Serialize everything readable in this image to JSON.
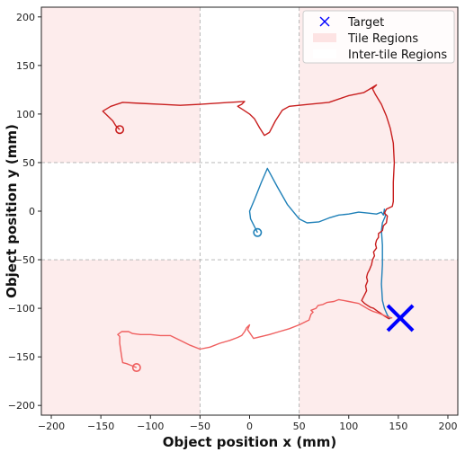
{
  "chart_data": {
    "type": "line",
    "xlabel": "Object position x (mm)",
    "ylabel": "Object position y (mm)",
    "xlim": [
      -210,
      210
    ],
    "ylim": [
      -210,
      210
    ],
    "xticks": [
      -200,
      -150,
      -100,
      -50,
      0,
      50,
      100,
      150,
      200
    ],
    "yticks": [
      -200,
      -150,
      -100,
      -50,
      0,
      50,
      100,
      150,
      200
    ],
    "grid_lines": [
      -50,
      50
    ],
    "legend_placement": "top-right",
    "legend": [
      {
        "label": "Target",
        "marker": "x",
        "color": "#0000ff"
      },
      {
        "label": "Tile Regions",
        "marker": "patch",
        "color": "#fde3e3"
      },
      {
        "label": "Inter-tile Regions",
        "marker": "patch",
        "color": "#ffffff"
      }
    ],
    "regions": {
      "tile_color": "#fdecec",
      "tile_regions": [
        {
          "x": [
            -210,
            -50
          ],
          "y": [
            50,
            210
          ]
        },
        {
          "x": [
            50,
            210
          ],
          "y": [
            50,
            210
          ]
        },
        {
          "x": [
            -210,
            -50
          ],
          "y": [
            -210,
            -50
          ]
        },
        {
          "x": [
            50,
            210
          ],
          "y": [
            -210,
            -50
          ]
        }
      ]
    },
    "target": {
      "x": 152,
      "y": -110,
      "color": "#0000ff"
    },
    "series": [
      {
        "color": "#1f80b8",
        "start": [
          8,
          -22
        ],
        "points": [
          [
            8,
            -22
          ],
          [
            1,
            -8
          ],
          [
            0,
            0
          ],
          [
            5,
            12
          ],
          [
            12,
            30
          ],
          [
            18,
            44
          ],
          [
            28,
            25
          ],
          [
            38,
            7
          ],
          [
            50,
            -8
          ],
          [
            58,
            -12
          ],
          [
            70,
            -11
          ],
          [
            80,
            -7
          ],
          [
            90,
            -4
          ],
          [
            100,
            -3
          ],
          [
            110,
            -1
          ],
          [
            120,
            -2
          ],
          [
            128,
            -3
          ],
          [
            133,
            -1
          ],
          [
            135,
            -4
          ],
          [
            136,
            2
          ],
          [
            137,
            -5
          ],
          [
            134,
            -12
          ],
          [
            133,
            -20
          ],
          [
            134,
            -35
          ],
          [
            134,
            -55
          ],
          [
            133,
            -75
          ],
          [
            134,
            -92
          ],
          [
            136,
            -100
          ],
          [
            139,
            -107
          ],
          [
            142,
            -111
          ]
        ]
      },
      {
        "color": "#c81e1e",
        "start": [
          -131,
          84
        ],
        "points": [
          [
            -131,
            84
          ],
          [
            -135,
            88
          ],
          [
            -138,
            93
          ],
          [
            -148,
            103
          ],
          [
            -140,
            108
          ],
          [
            -128,
            112
          ],
          [
            -110,
            111
          ],
          [
            -90,
            110
          ],
          [
            -70,
            109
          ],
          [
            -50,
            110
          ],
          [
            -20,
            112
          ],
          [
            -5,
            113
          ],
          [
            -8,
            110
          ],
          [
            -12,
            108
          ],
          [
            -6,
            104
          ],
          [
            0,
            100
          ],
          [
            5,
            95
          ],
          [
            10,
            86
          ],
          [
            15,
            78
          ],
          [
            20,
            81
          ],
          [
            26,
            93
          ],
          [
            33,
            104
          ],
          [
            40,
            108
          ],
          [
            60,
            110
          ],
          [
            80,
            112
          ],
          [
            100,
            119
          ],
          [
            115,
            122
          ],
          [
            120,
            125
          ],
          [
            128,
            130
          ],
          [
            124,
            126
          ],
          [
            127,
            120
          ],
          [
            133,
            110
          ],
          [
            138,
            98
          ],
          [
            142,
            85
          ],
          [
            145,
            70
          ],
          [
            146,
            50
          ],
          [
            145,
            30
          ],
          [
            145,
            10
          ],
          [
            144,
            5
          ],
          [
            138,
            2
          ],
          [
            136,
            -2
          ],
          [
            139,
            -5
          ],
          [
            138,
            -12
          ],
          [
            135,
            -15
          ],
          [
            134,
            -20
          ],
          [
            130,
            -23
          ],
          [
            130,
            -27
          ],
          [
            128,
            -30
          ],
          [
            127,
            -34
          ],
          [
            128,
            -38
          ],
          [
            125,
            -42
          ],
          [
            126,
            -46
          ],
          [
            124,
            -50
          ],
          [
            123,
            -55
          ],
          [
            121,
            -60
          ],
          [
            119,
            -64
          ],
          [
            118,
            -68
          ],
          [
            119,
            -72
          ],
          [
            117,
            -77
          ],
          [
            118,
            -82
          ],
          [
            115,
            -88
          ],
          [
            113,
            -92
          ],
          [
            116,
            -95
          ],
          [
            119,
            -97
          ],
          [
            122,
            -99
          ],
          [
            125,
            -100
          ],
          [
            129,
            -103
          ],
          [
            132,
            -105
          ],
          [
            136,
            -108
          ],
          [
            141,
            -111
          ]
        ]
      },
      {
        "color": "#ef5f5f",
        "start": [
          -114,
          -161
        ],
        "points": [
          [
            -114,
            -161
          ],
          [
            -119,
            -159
          ],
          [
            -124,
            -157
          ],
          [
            -128,
            -156
          ],
          [
            -129,
            -150
          ],
          [
            -130,
            -143
          ],
          [
            -131,
            -136
          ],
          [
            -131,
            -129
          ],
          [
            -133,
            -127
          ],
          [
            -129,
            -124
          ],
          [
            -122,
            -124
          ],
          [
            -118,
            -126
          ],
          [
            -110,
            -127
          ],
          [
            -100,
            -127
          ],
          [
            -90,
            -128
          ],
          [
            -80,
            -128
          ],
          [
            -70,
            -133
          ],
          [
            -60,
            -138
          ],
          [
            -50,
            -142
          ],
          [
            -40,
            -140
          ],
          [
            -30,
            -136
          ],
          [
            -20,
            -133
          ],
          [
            -12,
            -130
          ],
          [
            -8,
            -128
          ],
          [
            -5,
            -124
          ],
          [
            -3,
            -120
          ],
          [
            0,
            -117
          ],
          [
            -2,
            -122
          ],
          [
            0,
            -125
          ],
          [
            4,
            -131
          ],
          [
            12,
            -129
          ],
          [
            20,
            -127
          ],
          [
            30,
            -124
          ],
          [
            40,
            -121
          ],
          [
            50,
            -117
          ],
          [
            60,
            -112
          ],
          [
            62,
            -106
          ],
          [
            64,
            -104
          ],
          [
            62,
            -102
          ],
          [
            67,
            -100
          ],
          [
            69,
            -97
          ],
          [
            74,
            -96
          ],
          [
            78,
            -94
          ],
          [
            85,
            -93
          ],
          [
            90,
            -91
          ],
          [
            100,
            -93
          ],
          [
            110,
            -95
          ],
          [
            115,
            -98
          ],
          [
            120,
            -101
          ],
          [
            124,
            -103
          ],
          [
            130,
            -105
          ],
          [
            135,
            -107
          ],
          [
            140,
            -109
          ],
          [
            144,
            -110
          ]
        ]
      }
    ]
  }
}
